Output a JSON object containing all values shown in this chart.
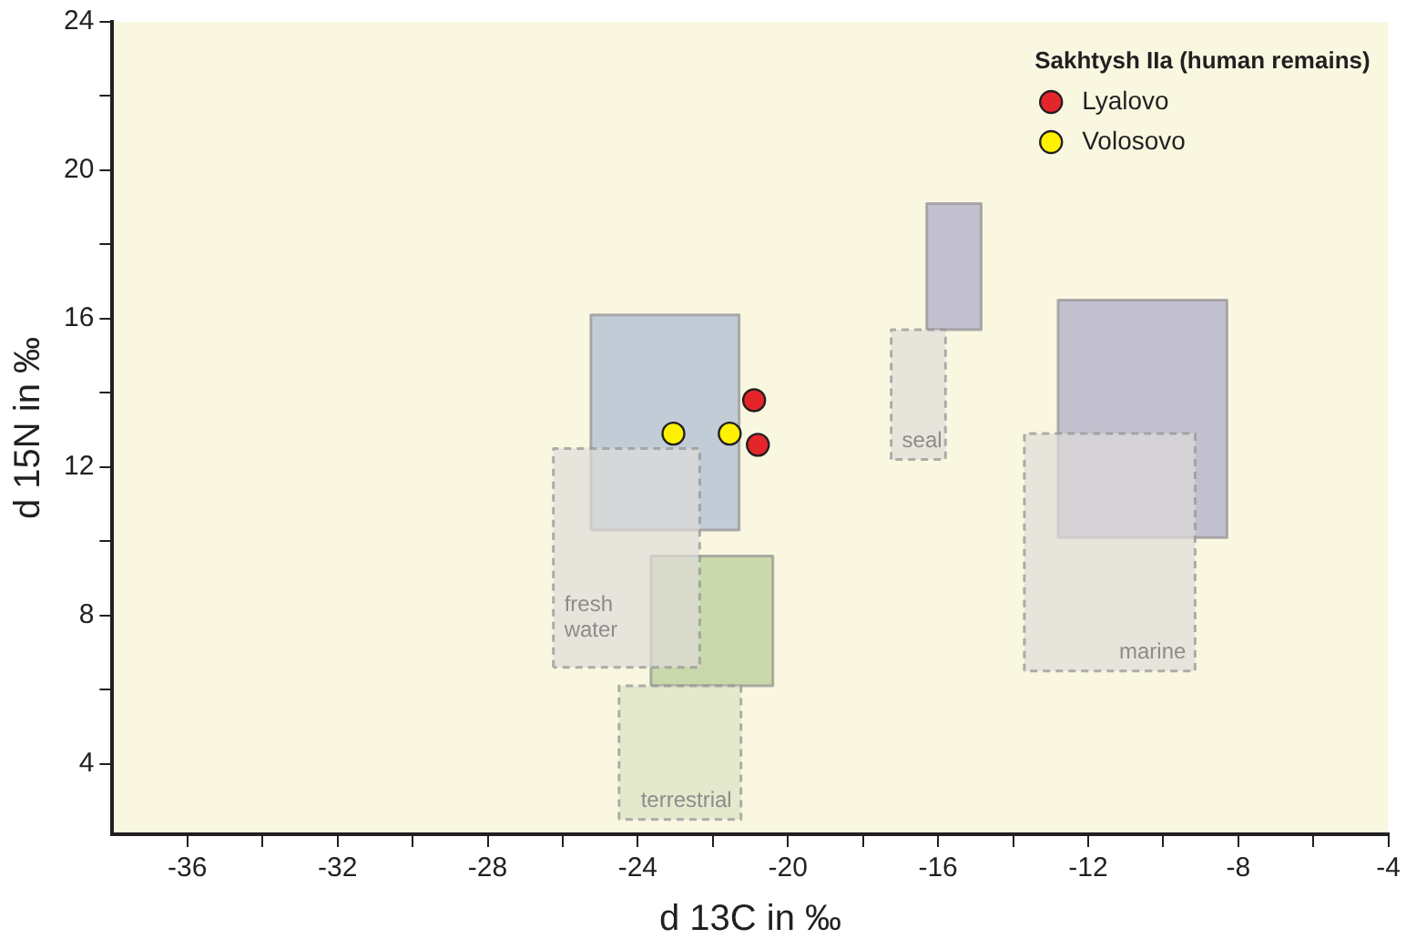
{
  "chart_data": {
    "type": "scatter",
    "xlabel": "d 13C in ‰",
    "ylabel": "d 15N in ‰",
    "legend_title": "Sakhtysh IIa (human remains)",
    "legend": "top right",
    "grid": false,
    "xlim": [
      -38,
      -4
    ],
    "xticks": [
      -36,
      {
        "value": -34,
        "label": null
      },
      -32,
      {
        "value": -30,
        "label": null
      },
      -28,
      {
        "value": -26,
        "label": null
      },
      -24,
      {
        "value": -22,
        "label": null
      },
      -20,
      {
        "value": -18,
        "label": null
      },
      -16,
      {
        "value": -14,
        "label": null
      },
      -12,
      {
        "value": -10,
        "label": null
      },
      -8,
      {
        "value": -6,
        "label": null
      },
      -4
    ],
    "ylim": [
      2.1,
      24
    ],
    "yticks": [
      4,
      {
        "value": 6,
        "label": null
      },
      8,
      {
        "value": 10,
        "label": null
      },
      12,
      {
        "value": 14,
        "label": null
      },
      16,
      {
        "value": 18,
        "label": null
      },
      20,
      {
        "value": 22,
        "label": null
      },
      24
    ],
    "series": [
      {
        "type": "area",
        "name": "fresh water",
        "color": "#dedbd8",
        "line_style": "dashed",
        "x": [
          -26.25,
          -26.25,
          -22.35,
          -22.35,
          -26.25
        ],
        "values": [
          6.6,
          12.5,
          12.5,
          6.6,
          6.6
        ]
      },
      {
        "type": "area",
        "name": "terrestrial",
        "color": "#dae3c4",
        "line_style": "dashed",
        "x": [
          -24.5,
          -24.5,
          -21.25,
          -21.25,
          -24.5
        ],
        "values": [
          2.5,
          6.1,
          6.1,
          2.5,
          2.5
        ]
      },
      {
        "type": "area",
        "name": "seal",
        "color": "#dedbd8",
        "line_style": "dashed",
        "x": [
          -17.25,
          -17.25,
          -15.8,
          -15.8,
          -17.25
        ],
        "values": [
          12.2,
          15.7,
          15.7,
          12.2,
          12.2
        ]
      },
      {
        "type": "area",
        "name": "marine",
        "color": "#dedbd8",
        "line_style": "dashed",
        "x": [
          -13.7,
          -13.7,
          -9.15,
          -9.15,
          -13.7
        ],
        "values": [
          6.5,
          12.9,
          12.9,
          6.5,
          6.5
        ]
      },
      {
        "type": "area",
        "color": "#a9b9d3",
        "line_style": "solid",
        "x": [
          -25.25,
          -25.25,
          -21.3,
          -21.3,
          -25.25
        ],
        "values": [
          10.3,
          16.1,
          16.1,
          10.3,
          10.3
        ]
      },
      {
        "type": "area",
        "color": "#b3cc94",
        "line_style": "solid",
        "x": [
          -23.65,
          -23.65,
          -20.4,
          -20.4,
          -23.65
        ],
        "values": [
          6.1,
          9.6,
          9.6,
          6.1,
          6.1
        ]
      },
      {
        "type": "area",
        "color": "#aaa8c8",
        "line_style": "solid",
        "x": [
          -16.3,
          -16.3,
          -14.85,
          -14.85,
          -16.3
        ],
        "values": [
          15.7,
          19.1,
          19.1,
          15.7,
          15.7
        ]
      },
      {
        "type": "area",
        "color": "#aaa8c8",
        "line_style": "solid",
        "x": [
          -12.8,
          -12.8,
          -8.3,
          -8.3,
          -12.8
        ],
        "values": [
          10.1,
          16.5,
          16.5,
          10.1,
          10.1
        ]
      },
      {
        "name": "Lyalovo",
        "color": "#e4262a",
        "x": [
          -20.9,
          -20.8
        ],
        "values": [
          13.8,
          12.6
        ]
      },
      {
        "name": "Volosovo",
        "color": "#fff200",
        "x": [
          -23.05,
          -21.55
        ],
        "values": [
          12.9,
          12.9
        ]
      }
    ]
  }
}
